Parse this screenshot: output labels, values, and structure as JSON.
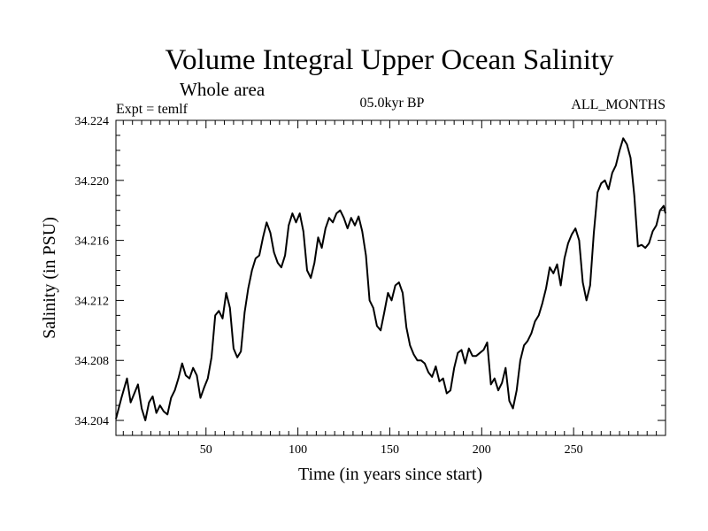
{
  "chart_data": {
    "type": "line",
    "title": "Volume Integral Upper Ocean Salinity",
    "subtitle": "Whole area",
    "experiment": "Expt = temlf",
    "period": "05.0kyr BP",
    "months": "ALL_MONTHS",
    "xlabel": "Time (in years since start)",
    "ylabel": "Salinity (in PSU)",
    "xlim": [
      1,
      300
    ],
    "ylim": [
      34.203,
      34.224
    ],
    "xticks": [
      50,
      100,
      150,
      200,
      250
    ],
    "xtick_labels": [
      "50",
      "100",
      "150",
      "200",
      "250"
    ],
    "yticks": [
      34.204,
      34.208,
      34.212,
      34.216,
      34.22,
      34.224
    ],
    "ytick_labels": [
      "34.204",
      "34.208",
      "34.212",
      "34.216",
      "34.220",
      "34.224"
    ],
    "grid": false,
    "series": [
      {
        "name": "Salinity",
        "x": [
          1,
          4,
          7,
          9,
          11,
          13,
          15,
          17,
          19,
          21,
          23,
          25,
          27,
          29,
          31,
          33,
          35,
          37,
          39,
          41,
          43,
          45,
          47,
          49,
          51,
          53,
          55,
          57,
          59,
          61,
          63,
          65,
          67,
          69,
          71,
          73,
          75,
          77,
          79,
          81,
          83,
          85,
          87,
          89,
          91,
          93,
          95,
          97,
          99,
          101,
          103,
          105,
          107,
          109,
          111,
          113,
          115,
          117,
          119,
          121,
          123,
          125,
          127,
          129,
          131,
          133,
          135,
          137,
          139,
          141,
          143,
          145,
          147,
          149,
          151,
          153,
          155,
          157,
          159,
          161,
          163,
          165,
          167,
          169,
          171,
          173,
          175,
          177,
          179,
          181,
          183,
          185,
          187,
          189,
          191,
          193,
          195,
          197,
          199,
          201,
          203,
          205,
          207,
          209,
          211,
          213,
          215,
          217,
          219,
          221,
          223,
          225,
          227,
          229,
          231,
          233,
          235,
          237,
          239,
          241,
          243,
          245,
          247,
          249,
          251,
          253,
          255,
          257,
          259,
          261,
          263,
          265,
          267,
          269,
          271,
          273,
          275,
          277,
          279,
          281,
          283,
          285,
          287,
          289,
          291,
          293,
          295,
          297,
          299,
          300
        ],
        "values": [
          34.2041,
          34.2055,
          34.2068,
          34.2052,
          34.2058,
          34.2064,
          34.2048,
          34.204,
          34.2052,
          34.2056,
          34.2045,
          34.205,
          34.2046,
          34.2044,
          34.2055,
          34.206,
          34.2068,
          34.2078,
          34.207,
          34.2068,
          34.2075,
          34.207,
          34.2055,
          34.2062,
          34.2068,
          34.2082,
          34.211,
          34.2113,
          34.2108,
          34.2125,
          34.2115,
          34.2088,
          34.2082,
          34.2086,
          34.2112,
          34.2128,
          34.214,
          34.2148,
          34.215,
          34.2162,
          34.2172,
          34.2165,
          34.2152,
          34.2145,
          34.2142,
          34.215,
          34.217,
          34.2178,
          34.2172,
          34.2178,
          34.2166,
          34.214,
          34.2135,
          34.2145,
          34.2162,
          34.2155,
          34.2168,
          34.2175,
          34.2172,
          34.2178,
          34.218,
          34.2175,
          34.2168,
          34.2175,
          34.217,
          34.2176,
          34.2166,
          34.215,
          34.212,
          34.2115,
          34.2103,
          34.21,
          34.2112,
          34.2125,
          34.212,
          34.213,
          34.2132,
          34.2125,
          34.2102,
          34.209,
          34.2084,
          34.208,
          34.208,
          34.2078,
          34.2072,
          34.2069,
          34.2076,
          34.2066,
          34.2068,
          34.2058,
          34.206,
          34.2075,
          34.2085,
          34.2087,
          34.2078,
          34.2088,
          34.2083,
          34.2083,
          34.2085,
          34.2087,
          34.2092,
          34.2064,
          34.2068,
          34.206,
          34.2065,
          34.2075,
          34.2053,
          34.2048,
          34.206,
          34.208,
          34.209,
          34.2093,
          34.2098,
          34.2106,
          34.211,
          34.2118,
          34.2128,
          34.2142,
          34.2138,
          34.2144,
          34.213,
          34.2148,
          34.2158,
          34.2164,
          34.2168,
          34.216,
          34.2132,
          34.212,
          34.213,
          34.2165,
          34.2192,
          34.2198,
          34.22,
          34.2194,
          34.2205,
          34.221,
          34.222,
          34.2228,
          34.2224,
          34.2215,
          34.219,
          34.2156,
          34.2157,
          34.2155,
          34.2158,
          34.2166,
          34.217,
          34.218,
          34.2183,
          34.2178
        ]
      }
    ]
  }
}
